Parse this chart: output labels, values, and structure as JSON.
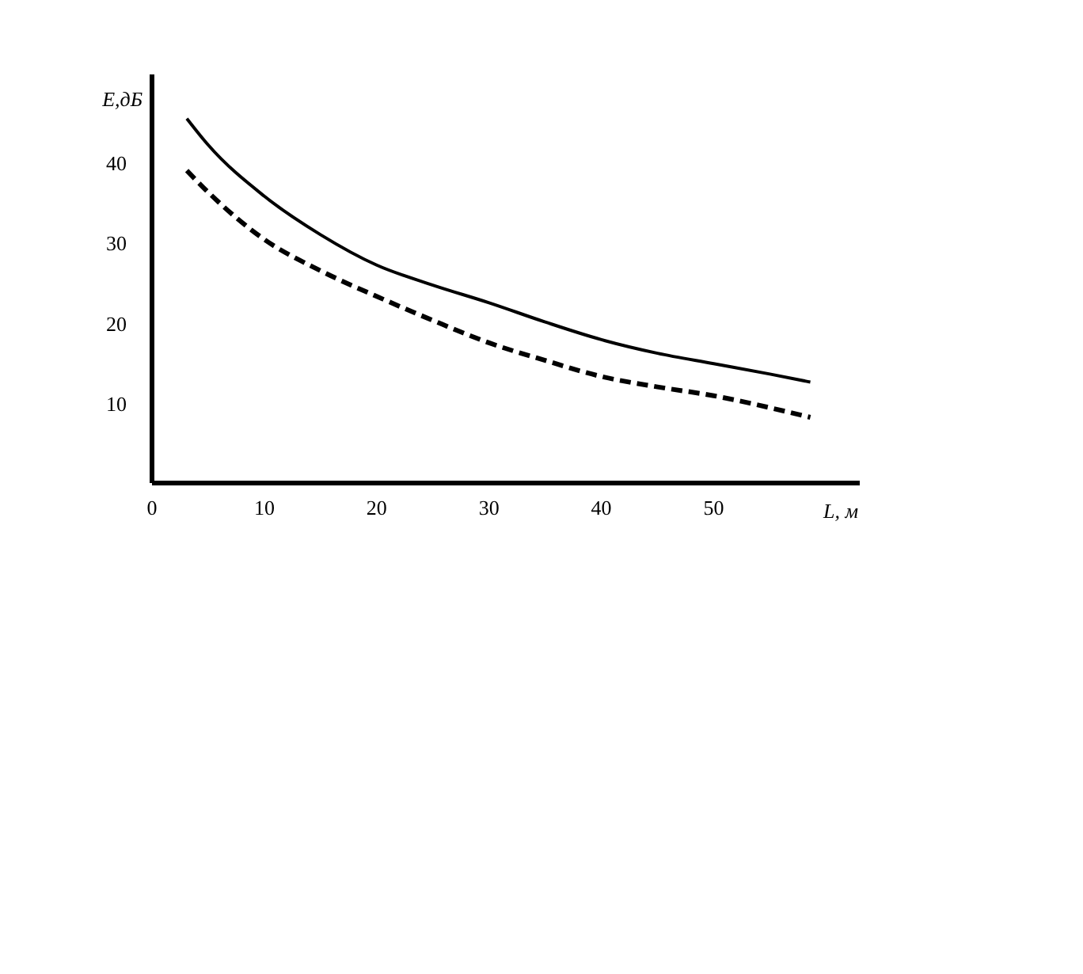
{
  "chart_data": {
    "type": "line",
    "xlabel": "L, м",
    "ylabel": "E,дБ",
    "x": [
      3.1,
      5,
      10,
      15,
      20,
      25,
      30,
      35,
      40,
      45,
      50,
      55,
      58.6
    ],
    "xlim": [
      0,
      63
    ],
    "xticks": [
      {
        "value": 0,
        "label": "0"
      },
      10,
      20,
      30,
      40,
      50
    ],
    "ylim": [
      0,
      51
    ],
    "yticks": [
      10,
      20,
      30,
      40
    ],
    "grid": false,
    "marker": "none",
    "series": [
      {
        "color": "#000000",
        "line_style": "solid",
        "values": [
          45.5,
          42.2,
          35.8,
          31,
          27.2,
          24.7,
          22.5,
          20.1,
          17.9,
          16.2,
          14.9,
          13.6,
          12.6
        ]
      },
      {
        "color": "#000000",
        "line_style": "dashed",
        "values": [
          39,
          36.3,
          30.4,
          26.5,
          23.3,
          20.3,
          17.5,
          15.3,
          13.3,
          12,
          10.9,
          9.4,
          8.2
        ]
      }
    ]
  }
}
